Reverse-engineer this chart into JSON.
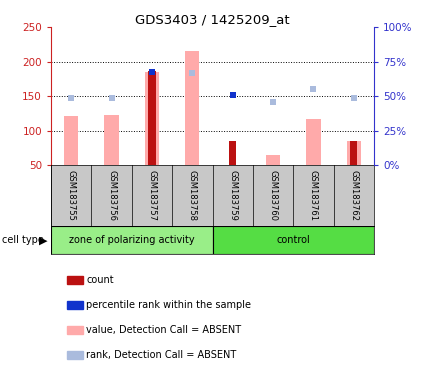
{
  "title": "GDS3403 / 1425209_at",
  "samples": [
    "GSM183755",
    "GSM183756",
    "GSM183757",
    "GSM183758",
    "GSM183759",
    "GSM183760",
    "GSM183761",
    "GSM183762"
  ],
  "ylim_left": [
    50,
    250
  ],
  "ylim_right": [
    0,
    100
  ],
  "yticks_left": [
    50,
    100,
    150,
    200,
    250
  ],
  "yticks_right": [
    0,
    25,
    50,
    75,
    100
  ],
  "ytick_labels_right": [
    "0%",
    "25%",
    "50%",
    "75%",
    "100%"
  ],
  "pink_bars": [
    122,
    123,
    185,
    215,
    0,
    65,
    117,
    85
  ],
  "red_bars": [
    0,
    0,
    186,
    0,
    86,
    0,
    0,
    86
  ],
  "blue_squares": [
    null,
    null,
    185,
    null,
    152,
    null,
    null,
    null
  ],
  "light_blue_squares": [
    147,
    147,
    null,
    183,
    null,
    142,
    160,
    148
  ],
  "grid_lines": [
    100,
    150,
    200
  ],
  "group1_label": "zone of polarizing activity",
  "group2_label": "control",
  "group1_indices": [
    0,
    1,
    2,
    3
  ],
  "group2_indices": [
    4,
    5,
    6,
    7
  ],
  "cell_type_label": "cell type",
  "colors": {
    "red_bar": "#bb1111",
    "pink_bar": "#ffaaaa",
    "blue_square": "#1133cc",
    "light_blue_square": "#aabbdd",
    "left_axis": "#cc2222",
    "right_axis": "#3333cc",
    "bg_xaxis": "#c8c8c8",
    "bg_group1": "#99ee88",
    "bg_group2": "#55dd44",
    "border": "#000000"
  },
  "legend_items": [
    {
      "label": "count",
      "color": "#bb1111"
    },
    {
      "label": "percentile rank within the sample",
      "color": "#1133cc"
    },
    {
      "label": "value, Detection Call = ABSENT",
      "color": "#ffaaaa"
    },
    {
      "label": "rank, Detection Call = ABSENT",
      "color": "#aabbdd"
    }
  ]
}
